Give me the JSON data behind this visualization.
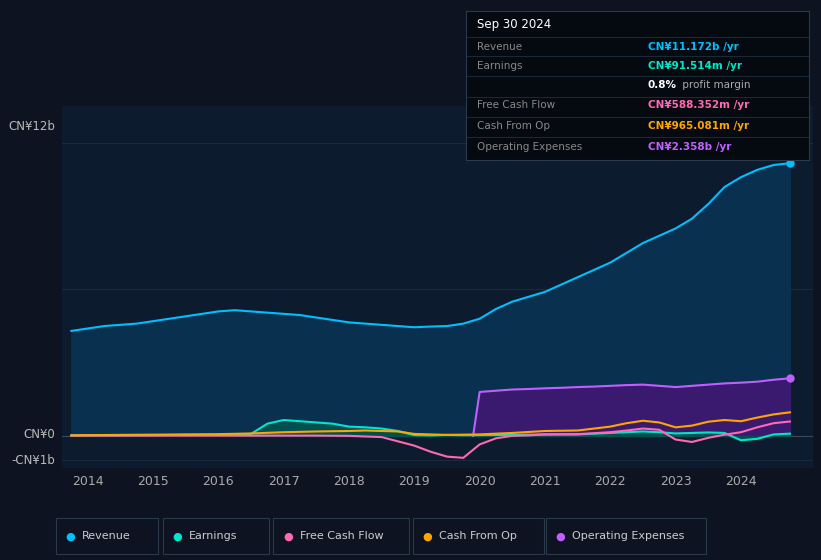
{
  "background_color": "#0d1320",
  "chart_bg_color": "#0d1b2e",
  "title": "Sep 30 2024",
  "y_label_top": "CN¥12b",
  "y_label_zero": "CN¥0",
  "y_label_neg": "-CN¥1b",
  "x_ticks": [
    2014,
    2015,
    2016,
    2017,
    2018,
    2019,
    2020,
    2021,
    2022,
    2023,
    2024
  ],
  "ylim": [
    -1300000000.0,
    13500000000.0
  ],
  "info_box": {
    "date": "Sep 30 2024",
    "revenue_value": "CN¥11.172b /yr",
    "revenue_color": "#00bfff",
    "earnings_value": "CN¥91.514m /yr",
    "earnings_color": "#00e5cc",
    "margin_bold": "0.8%",
    "margin_rest": " profit margin",
    "fcf_value": "CN¥588.352m /yr",
    "fcf_color": "#ff69b4",
    "cfo_value": "CN¥965.081m /yr",
    "cfo_color": "#ffa500",
    "opex_value": "CN¥2.358b /yr",
    "opex_color": "#bf5fff"
  },
  "series": {
    "revenue": {
      "color": "#00bfff",
      "fill_color": "#0a3050",
      "label": "Revenue",
      "data_x": [
        2013.75,
        2014.0,
        2014.25,
        2014.5,
        2014.75,
        2015.0,
        2015.25,
        2015.5,
        2015.75,
        2016.0,
        2016.25,
        2016.5,
        2016.75,
        2017.0,
        2017.25,
        2017.5,
        2017.75,
        2018.0,
        2018.25,
        2018.5,
        2018.75,
        2019.0,
        2019.25,
        2019.5,
        2019.75,
        2020.0,
        2020.25,
        2020.5,
        2020.75,
        2021.0,
        2021.25,
        2021.5,
        2021.75,
        2022.0,
        2022.25,
        2022.5,
        2022.75,
        2023.0,
        2023.25,
        2023.5,
        2023.75,
        2024.0,
        2024.25,
        2024.5,
        2024.75
      ],
      "data_y": [
        4300000000.0,
        4400000000.0,
        4500000000.0,
        4550000000.0,
        4600000000.0,
        4700000000.0,
        4800000000.0,
        4900000000.0,
        5000000000.0,
        5100000000.0,
        5150000000.0,
        5100000000.0,
        5050000000.0,
        5000000000.0,
        4950000000.0,
        4850000000.0,
        4750000000.0,
        4650000000.0,
        4600000000.0,
        4550000000.0,
        4500000000.0,
        4450000000.0,
        4480000000.0,
        4500000000.0,
        4600000000.0,
        4800000000.0,
        5200000000.0,
        5500000000.0,
        5700000000.0,
        5900000000.0,
        6200000000.0,
        6500000000.0,
        6800000000.0,
        7100000000.0,
        7500000000.0,
        7900000000.0,
        8200000000.0,
        8500000000.0,
        8900000000.0,
        9500000000.0,
        10200000000.0,
        10600000000.0,
        10900000000.0,
        11100000000.0,
        11172000000.0
      ]
    },
    "earnings": {
      "color": "#00e5cc",
      "fill_color": "#005050",
      "label": "Earnings",
      "data_x": [
        2013.75,
        2014.0,
        2014.5,
        2015.0,
        2015.5,
        2016.0,
        2016.5,
        2016.75,
        2017.0,
        2017.25,
        2017.5,
        2017.75,
        2018.0,
        2018.25,
        2018.5,
        2018.75,
        2019.0,
        2019.25,
        2019.5,
        2019.75,
        2020.0,
        2020.5,
        2021.0,
        2021.5,
        2022.0,
        2022.25,
        2022.5,
        2022.75,
        2023.0,
        2023.25,
        2023.5,
        2023.75,
        2024.0,
        2024.25,
        2024.5,
        2024.75
      ],
      "data_y": [
        20000000.0,
        20000000.0,
        20000000.0,
        30000000.0,
        40000000.0,
        40000000.0,
        80000000.0,
        500000000.0,
        650000000.0,
        600000000.0,
        550000000.0,
        500000000.0,
        380000000.0,
        350000000.0,
        300000000.0,
        200000000.0,
        30000000.0,
        20000000.0,
        40000000.0,
        30000000.0,
        30000000.0,
        40000000.0,
        60000000.0,
        60000000.0,
        120000000.0,
        150000000.0,
        180000000.0,
        150000000.0,
        100000000.0,
        120000000.0,
        140000000.0,
        120000000.0,
        -180000000.0,
        -120000000.0,
        60000000.0,
        91600000.0
      ]
    },
    "free_cash_flow": {
      "color": "#ff69b4",
      "label": "Free Cash Flow",
      "data_x": [
        2013.75,
        2014.0,
        2014.5,
        2015.0,
        2015.5,
        2016.0,
        2016.5,
        2017.0,
        2017.5,
        2018.0,
        2018.5,
        2019.0,
        2019.25,
        2019.5,
        2019.75,
        2020.0,
        2020.25,
        2020.5,
        2020.75,
        2021.0,
        2021.5,
        2022.0,
        2022.25,
        2022.5,
        2022.75,
        2023.0,
        2023.25,
        2023.5,
        2023.75,
        2024.0,
        2024.25,
        2024.5,
        2024.75
      ],
      "data_y": [
        10000000.0,
        10000000.0,
        10000000.0,
        10000000.0,
        10000000.0,
        10000000.0,
        10000000.0,
        10000000.0,
        10000000.0,
        0.0,
        -50000000.0,
        -400000000.0,
        -650000000.0,
        -850000000.0,
        -900000000.0,
        -350000000.0,
        -100000000.0,
        0.0,
        20000000.0,
        60000000.0,
        70000000.0,
        150000000.0,
        220000000.0,
        300000000.0,
        250000000.0,
        -150000000.0,
        -250000000.0,
        -80000000.0,
        50000000.0,
        150000000.0,
        350000000.0,
        520000000.0,
        588400000.0
      ]
    },
    "cash_from_op": {
      "color": "#ffa500",
      "label": "Cash From Op",
      "data_x": [
        2013.75,
        2014.0,
        2014.5,
        2015.0,
        2015.5,
        2016.0,
        2016.5,
        2017.0,
        2017.5,
        2018.0,
        2018.25,
        2018.5,
        2018.75,
        2019.0,
        2019.5,
        2020.0,
        2020.5,
        2021.0,
        2021.5,
        2022.0,
        2022.25,
        2022.5,
        2022.75,
        2023.0,
        2023.25,
        2023.5,
        2023.75,
        2024.0,
        2024.25,
        2024.5,
        2024.75
      ],
      "data_y": [
        20000000.0,
        30000000.0,
        40000000.0,
        50000000.0,
        60000000.0,
        70000000.0,
        100000000.0,
        150000000.0,
        180000000.0,
        200000000.0,
        220000000.0,
        200000000.0,
        180000000.0,
        80000000.0,
        40000000.0,
        60000000.0,
        120000000.0,
        200000000.0,
        220000000.0,
        380000000.0,
        520000000.0,
        620000000.0,
        550000000.0,
        350000000.0,
        420000000.0,
        580000000.0,
        650000000.0,
        600000000.0,
        750000000.0,
        880000000.0,
        965000000.0
      ]
    },
    "operating_expenses": {
      "color": "#bf5fff",
      "fill_color": "#3a1a6e",
      "label": "Operating Expenses",
      "data_x": [
        2019.9,
        2020.0,
        2020.25,
        2020.5,
        2020.75,
        2021.0,
        2021.25,
        2021.5,
        2021.75,
        2022.0,
        2022.25,
        2022.5,
        2022.75,
        2023.0,
        2023.25,
        2023.5,
        2023.75,
        2024.0,
        2024.25,
        2024.5,
        2024.75
      ],
      "data_y": [
        0.0,
        1800000000.0,
        1850000000.0,
        1900000000.0,
        1920000000.0,
        1950000000.0,
        1970000000.0,
        2000000000.0,
        2020000000.0,
        2050000000.0,
        2080000000.0,
        2100000000.0,
        2050000000.0,
        2000000000.0,
        2050000000.0,
        2100000000.0,
        2150000000.0,
        2180000000.0,
        2220000000.0,
        2300000000.0,
        2358000000.0
      ]
    }
  },
  "legend": [
    {
      "label": "Revenue",
      "color": "#00bfff"
    },
    {
      "label": "Earnings",
      "color": "#00e5cc"
    },
    {
      "label": "Free Cash Flow",
      "color": "#ff69b4"
    },
    {
      "label": "Cash From Op",
      "color": "#ffa500"
    },
    {
      "label": "Operating Expenses",
      "color": "#bf5fff"
    }
  ],
  "gridline_color": "#1e2d40",
  "zero_line_color": "#3a4a5a"
}
